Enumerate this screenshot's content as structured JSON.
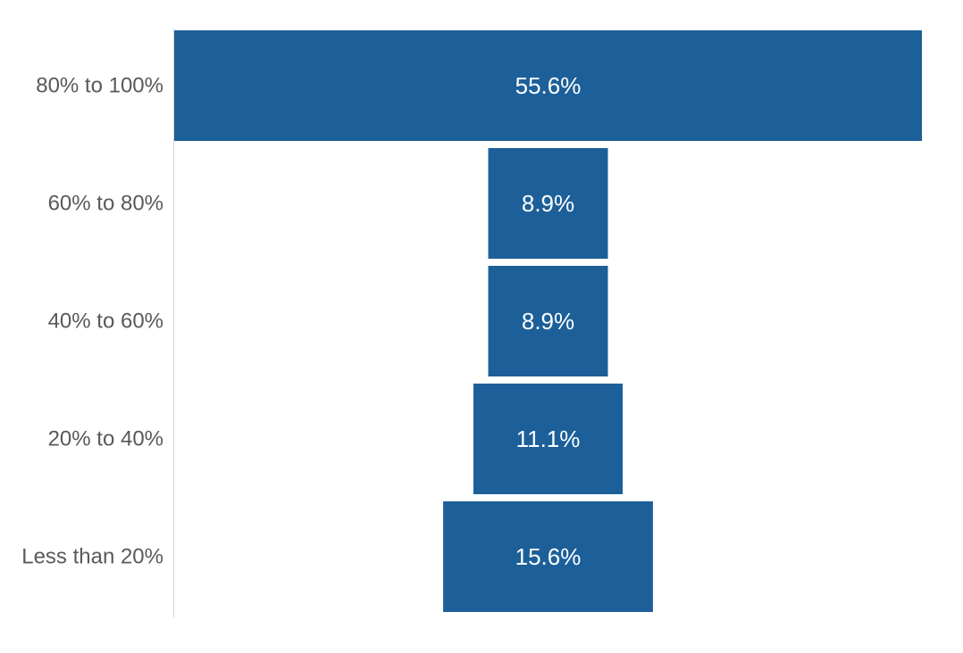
{
  "chart_data": {
    "type": "bar",
    "orientation": "horizontal",
    "layout": "funnel",
    "categories": [
      "80% to 100%",
      "60% to 80%",
      "40% to 60%",
      "20% to 40%",
      "Less than 20%"
    ],
    "values": [
      55.6,
      8.9,
      8.9,
      11.1,
      15.6
    ],
    "data_labels": [
      "55.6%",
      "8.9%",
      "8.9%",
      "11.1%",
      "15.6%"
    ],
    "title": "",
    "xlabel": "",
    "ylabel": "",
    "grid": false,
    "legend": "none"
  },
  "colors": {
    "bar": "#1c5f99",
    "label_text": "#595959",
    "bar_text": "#ffffff",
    "axis_line": "#d9d9d9"
  }
}
